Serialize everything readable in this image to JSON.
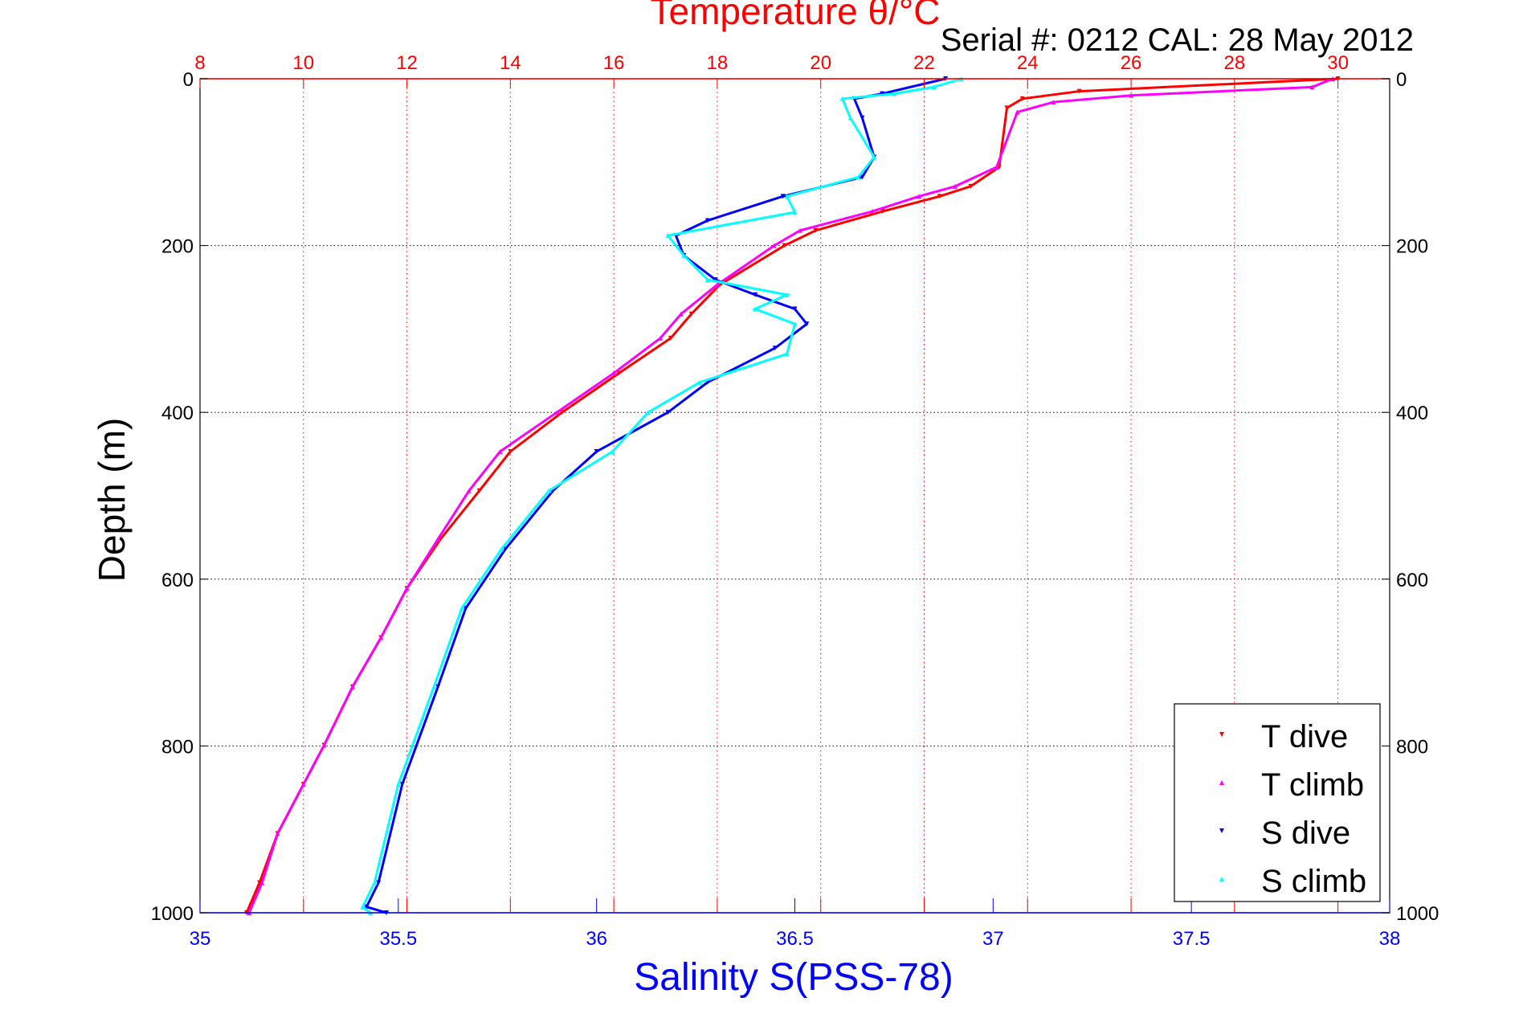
{
  "chart_data": {
    "type": "scatter",
    "title": "Temperature θ/°C",
    "subtitle": "Serial #: 0212  CAL: 28 May 2012",
    "ylabel": "Depth (m)",
    "xlabel": "Salinity S(PSS-78)",
    "ylim": [
      0,
      1000
    ],
    "y_reversed": true,
    "yticks": [
      "0",
      "200",
      "400",
      "600",
      "800",
      "1000"
    ],
    "temp_axis": {
      "lim": [
        8,
        31
      ],
      "ticks": [
        "8",
        "10",
        "12",
        "14",
        "16",
        "18",
        "20",
        "22",
        "24",
        "26",
        "28",
        "30"
      ],
      "color": "#ff0000"
    },
    "sal_axis": {
      "lim": [
        35,
        38
      ],
      "ticks": [
        "35",
        "35.5",
        "36",
        "36.5",
        "37",
        "37.5",
        "38"
      ],
      "color": "#0000ff"
    },
    "grid": true,
    "legend_position": "bottom-right",
    "series": [
      {
        "name": "T dive",
        "axis": "temp",
        "color": "#ff0000",
        "marker": "down-triangle",
        "depth": [
          0,
          15,
          24,
          35,
          106,
          129,
          141,
          159,
          182,
          200,
          247,
          282,
          311,
          353,
          400,
          447,
          494,
          552,
          611,
          670,
          729,
          799,
          846,
          905,
          964,
          1000
        ],
        "values": [
          30,
          25,
          23.9,
          23.6,
          23.45,
          22.9,
          22.3,
          21.2,
          19.9,
          19.3,
          18.05,
          17.5,
          17.1,
          16.1,
          15.0,
          14.0,
          13.4,
          12.65,
          12.0,
          11.5,
          10.95,
          10.4,
          10.0,
          9.5,
          9.15,
          8.9
        ]
      },
      {
        "name": "T climb",
        "axis": "temp",
        "color": "#ff00ff",
        "marker": "up-triangle",
        "depth": [
          0,
          10,
          20,
          28,
          40,
          106,
          129,
          141,
          159,
          182,
          200,
          247,
          282,
          311,
          353,
          400,
          447,
          494,
          552,
          611,
          670,
          729,
          799,
          846,
          905,
          964,
          1000
        ],
        "values": [
          29.9,
          29.5,
          26,
          24.5,
          23.8,
          23.4,
          22.6,
          21.9,
          21.0,
          19.6,
          19.1,
          18.0,
          17.3,
          16.9,
          16.0,
          14.9,
          13.8,
          13.2,
          12.6,
          12.0,
          11.5,
          10.95,
          10.4,
          10.0,
          9.5,
          9.2,
          8.95
        ]
      },
      {
        "name": "S dive",
        "axis": "sal",
        "color": "#0000ff",
        "marker": "down-triangle",
        "depth": [
          0,
          18,
          24,
          47,
          94,
          118,
          141,
          170,
          188,
          212,
          241,
          259,
          276,
          294,
          323,
          364,
          400,
          447,
          494,
          564,
          635,
          729,
          846,
          964,
          993,
          1000
        ],
        "values": [
          36.88,
          36.72,
          36.65,
          36.67,
          36.7,
          36.67,
          36.47,
          36.28,
          36.2,
          36.22,
          36.3,
          36.4,
          36.5,
          36.53,
          36.45,
          36.28,
          36.18,
          36.0,
          35.89,
          35.77,
          35.67,
          35.6,
          35.51,
          35.45,
          35.42,
          35.47
        ]
      },
      {
        "name": "S climb",
        "axis": "sal",
        "color": "#00ffff",
        "marker": "up-triangle",
        "depth": [
          0,
          10,
          18,
          24,
          47,
          94,
          118,
          141,
          160,
          188,
          212,
          241,
          259,
          276,
          294,
          330,
          364,
          400,
          447,
          494,
          564,
          635,
          729,
          846,
          964,
          993,
          1000
        ],
        "values": [
          36.92,
          36.85,
          36.75,
          36.62,
          36.64,
          36.7,
          36.66,
          36.48,
          36.5,
          36.18,
          36.22,
          36.28,
          36.48,
          36.4,
          36.5,
          36.48,
          36.26,
          36.13,
          36.04,
          35.88,
          35.76,
          35.66,
          35.59,
          35.5,
          35.44,
          35.41,
          35.43
        ]
      }
    ]
  }
}
